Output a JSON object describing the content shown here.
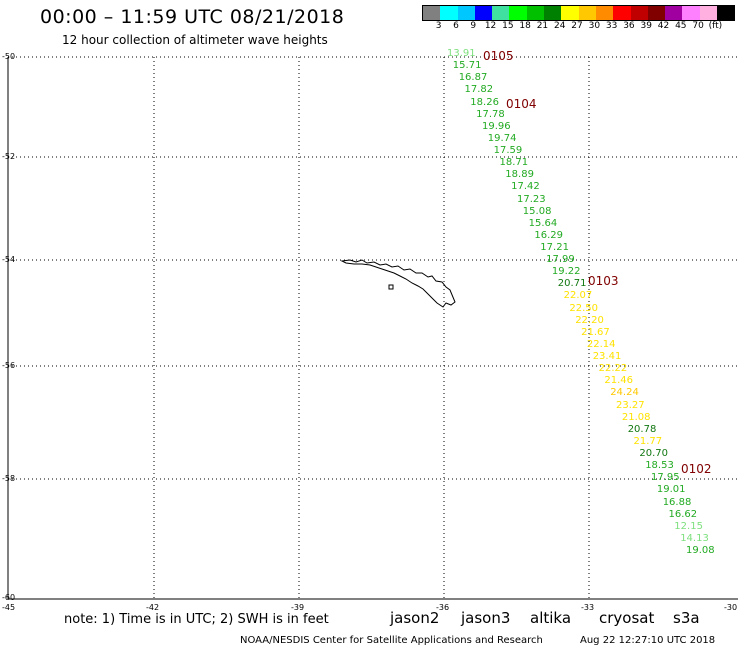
{
  "header": {
    "title": "00:00 – 11:59 UTC 08/21/2018",
    "subtitle": "12 hour collection of altimeter wave heights"
  },
  "legend": {
    "colors": [
      "#808080",
      "#00ffff",
      "#00c8ff",
      "#0000ff",
      "#40e0a0",
      "#00ff00",
      "#00c000",
      "#008000",
      "#ffff00",
      "#ffc800",
      "#ff8c00",
      "#ff0000",
      "#c00000",
      "#800000",
      "#a000a0",
      "#ff80ff",
      "#ffb0e0",
      "#000000"
    ],
    "labels": [
      "3",
      "6",
      "9",
      "12",
      "15",
      "18",
      "21",
      "24",
      "27",
      "30",
      "33",
      "36",
      "39",
      "42",
      "45",
      "70",
      "(ft)"
    ]
  },
  "axes": {
    "y_labels": [
      "-50",
      "-52",
      "-54",
      "-56",
      "-58",
      "-60"
    ],
    "x_labels": [
      "-45",
      "-42",
      "-39",
      "-36",
      "-33",
      "-30"
    ]
  },
  "passes": [
    "0105",
    "0104",
    "0103",
    "0102"
  ],
  "observations": [
    {
      "v": "13.91",
      "c": "#7ee07e"
    },
    {
      "v": "15.71",
      "c": "#22aa22"
    },
    {
      "v": "16.87",
      "c": "#22aa22"
    },
    {
      "v": "17.82",
      "c": "#22aa22"
    },
    {
      "v": "18.26",
      "c": "#22aa22"
    },
    {
      "v": "17.78",
      "c": "#22aa22"
    },
    {
      "v": "19.96",
      "c": "#22aa22"
    },
    {
      "v": "19.74",
      "c": "#22aa22"
    },
    {
      "v": "17.59",
      "c": "#22aa22"
    },
    {
      "v": "18.71",
      "c": "#22aa22"
    },
    {
      "v": "18.89",
      "c": "#22aa22"
    },
    {
      "v": "17.42",
      "c": "#22aa22"
    },
    {
      "v": "17.23",
      "c": "#22aa22"
    },
    {
      "v": "15.08",
      "c": "#22aa22"
    },
    {
      "v": "15.64",
      "c": "#22aa22"
    },
    {
      "v": "16.29",
      "c": "#22aa22"
    },
    {
      "v": "17.21",
      "c": "#22aa22"
    },
    {
      "v": "17.99",
      "c": "#22aa22"
    },
    {
      "v": "19.22",
      "c": "#22aa22"
    },
    {
      "v": "20.71",
      "c": "#117711"
    },
    {
      "v": "22.07",
      "c": "#ffe200"
    },
    {
      "v": "22.50",
      "c": "#ffe200"
    },
    {
      "v": "22.20",
      "c": "#ffe200"
    },
    {
      "v": "21.67",
      "c": "#ffe200"
    },
    {
      "v": "22.14",
      "c": "#ffe200"
    },
    {
      "v": "23.41",
      "c": "#ffe200"
    },
    {
      "v": "22.22",
      "c": "#ffe200"
    },
    {
      "v": "21.46",
      "c": "#ffe200"
    },
    {
      "v": "24.24",
      "c": "#ffc800"
    },
    {
      "v": "23.27",
      "c": "#ffe200"
    },
    {
      "v": "21.08",
      "c": "#ffe200"
    },
    {
      "v": "20.78",
      "c": "#117711"
    },
    {
      "v": "21.77",
      "c": "#ffe200"
    },
    {
      "v": "20.70",
      "c": "#117711"
    },
    {
      "v": "18.53",
      "c": "#22aa22"
    },
    {
      "v": "17.95",
      "c": "#22aa22"
    },
    {
      "v": "19.01",
      "c": "#22aa22"
    },
    {
      "v": "16.88",
      "c": "#22aa22"
    },
    {
      "v": "16.62",
      "c": "#22aa22"
    },
    {
      "v": "12.15",
      "c": "#7ee07e"
    },
    {
      "v": "14.13",
      "c": "#7ee07e"
    },
    {
      "v": "19.08",
      "c": "#22aa22"
    }
  ],
  "footer": {
    "note": "note: 1) Time is in UTC; 2) SWH is in feet",
    "satellites": [
      {
        "name": "jason2",
        "color": "#0000ff"
      },
      {
        "name": "jason3",
        "color": "#009900"
      },
      {
        "name": "altika",
        "color": "#ff8c00"
      },
      {
        "name": "cryosat",
        "color": "#ff0000"
      },
      {
        "name": "s3a",
        "color": "#800000"
      }
    ],
    "credit": "NOAA/NESDIS Center for Satellite Applications and Research",
    "timestamp": "Aug 22 12:27:10 UTC 2018"
  }
}
